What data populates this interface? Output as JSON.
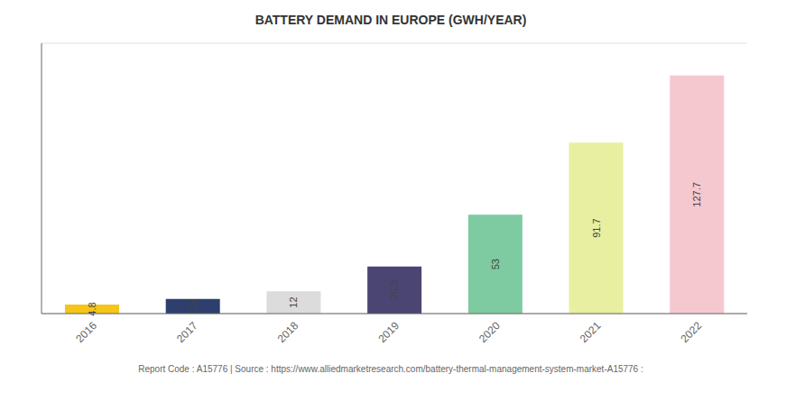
{
  "chart_data": {
    "type": "bar",
    "title": "BATTERY DEMAND IN EUROPE (GWH/YEAR)",
    "categories": [
      "2016",
      "2017",
      "2018",
      "2019",
      "2020",
      "2021",
      "2022"
    ],
    "values": [
      4.8,
      7.8,
      12,
      25.3,
      53,
      91.7,
      127.7
    ],
    "colors": [
      "#F5C518",
      "#2E3F6E",
      "#DCDCDC",
      "#4B4573",
      "#7ECBA1",
      "#E8EFA0",
      "#F5C8D0"
    ],
    "ylim": [
      0,
      145
    ],
    "yticks": [
      0,
      20,
      40,
      60,
      80,
      100,
      120,
      140
    ],
    "grid": true,
    "data_labels": true,
    "tick_labels": "x",
    "annotations": [
      "Report Code : A15776  |  Source : https://www.alliedmarketresearch.com/battery-thermal-management-system-market-A15776 :"
    ]
  }
}
